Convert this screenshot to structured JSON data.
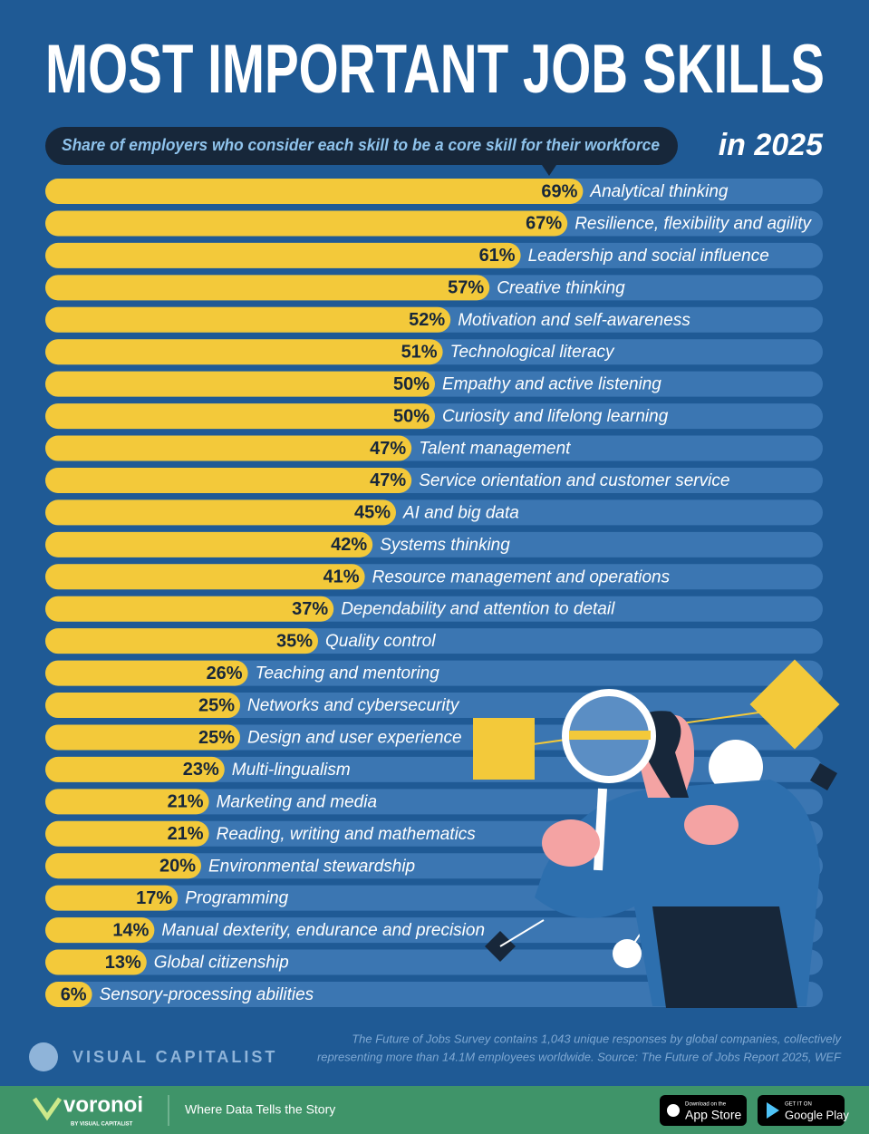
{
  "chart_data": {
    "type": "bar",
    "orientation": "horizontal",
    "title": "MOST IMPORTANT JOB SKILLS",
    "subtitle": "Share of employers who consider each skill to be a core skill for their workforce",
    "year_label": "in 2025",
    "categories": [
      "Analytical thinking",
      "Resilience, flexibility and agility",
      "Leadership and social influence",
      "Creative thinking",
      "Motivation and self-awareness",
      "Technological literacy",
      "Empathy and active listening",
      "Curiosity and lifelong learning",
      "Talent management",
      "Service orientation and customer service",
      "AI and big data",
      "Systems thinking",
      "Resource management and operations",
      "Dependability and attention to detail",
      "Quality control",
      "Teaching and mentoring",
      "Networks and cybersecurity",
      "Design and user experience",
      "Multi-lingualism",
      "Marketing and media",
      "Reading, writing and mathematics",
      "Environmental stewardship",
      "Programming",
      "Manual dexterity, endurance and precision",
      "Global citizenship",
      "Sensory-processing abilities"
    ],
    "values": [
      69,
      67,
      61,
      57,
      52,
      51,
      50,
      50,
      47,
      47,
      45,
      42,
      41,
      37,
      35,
      26,
      25,
      25,
      23,
      21,
      21,
      20,
      17,
      14,
      13,
      6
    ],
    "value_labels": [
      "69%",
      "67%",
      "61%",
      "57%",
      "52%",
      "51%",
      "50%",
      "50%",
      "47%",
      "47%",
      "45%",
      "42%",
      "41%",
      "37%",
      "35%",
      "26%",
      "25%",
      "25%",
      "23%",
      "21%",
      "21%",
      "20%",
      "17%",
      "14%",
      "13%",
      "6%"
    ],
    "color": "#f3c93a",
    "track_color": "#3b76b2",
    "xlim": [
      0,
      100
    ],
    "note": [
      "The Future of Jobs Survey contains 1,043 unique responses by global companies, collectively",
      "representing more than 14.1M employees worldwide. Source: The Future of Jobs Report 2025, WEF"
    ],
    "brand": "VISUAL CAPITALIST"
  },
  "footer": {
    "logo": "voronoi",
    "logo_sub": "BY VISUAL CAPITALIST",
    "tagline": "Where Data Tells the Story",
    "app_store": [
      "Download on the",
      "App Store"
    ],
    "google_play": [
      "GET IT ON",
      "Google Play"
    ]
  }
}
